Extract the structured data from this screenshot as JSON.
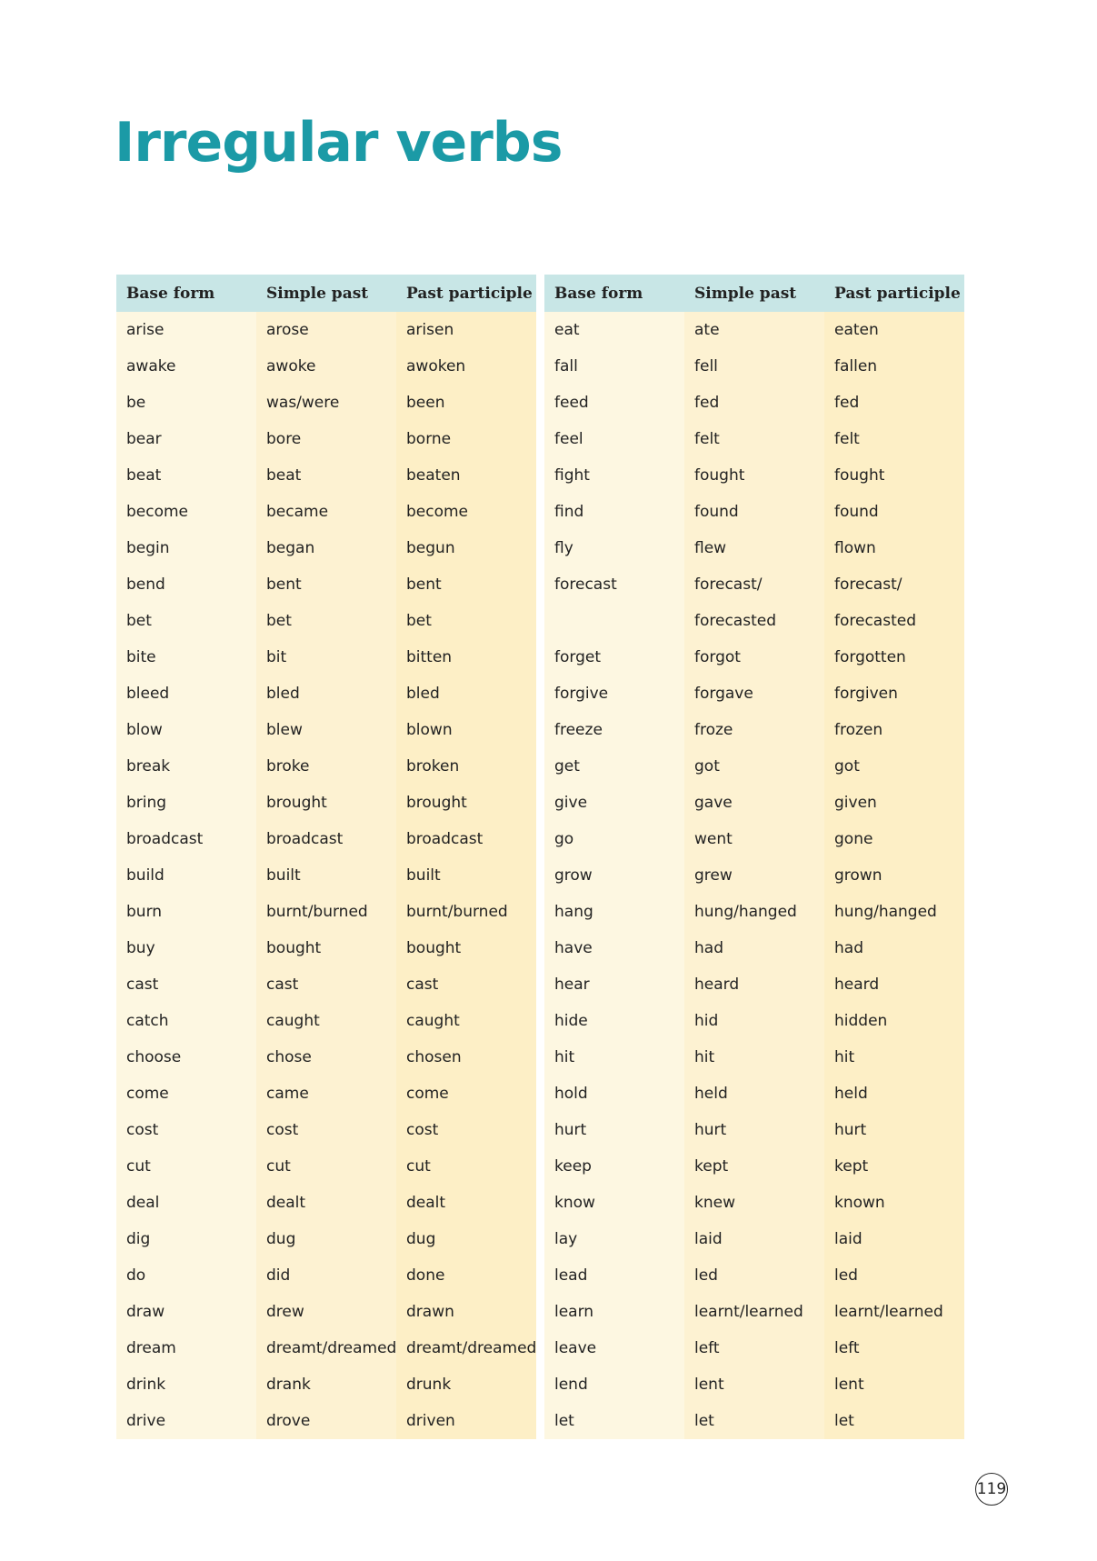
{
  "title": "Irregular verbs",
  "headers": [
    "Base form",
    "Simple past",
    "Past participle"
  ],
  "left_rows": [
    [
      "arise",
      "arose",
      "arisen"
    ],
    [
      "awake",
      "awoke",
      "awoken"
    ],
    [
      "be",
      "was/were",
      "been"
    ],
    [
      "bear",
      "bore",
      "borne"
    ],
    [
      "beat",
      "beat",
      "beaten"
    ],
    [
      "become",
      "became",
      "become"
    ],
    [
      "begin",
      "began",
      "begun"
    ],
    [
      "bend",
      "bent",
      "bent"
    ],
    [
      "bet",
      "bet",
      "bet"
    ],
    [
      "bite",
      "bit",
      "bitten"
    ],
    [
      "bleed",
      "bled",
      "bled"
    ],
    [
      "blow",
      "blew",
      "blown"
    ],
    [
      "break",
      "broke",
      "broken"
    ],
    [
      "bring",
      "brought",
      "brought"
    ],
    [
      "broadcast",
      "broadcast",
      "broadcast"
    ],
    [
      "build",
      "built",
      "built"
    ],
    [
      "burn",
      "burnt/burned",
      "burnt/burned"
    ],
    [
      "buy",
      "bought",
      "bought"
    ],
    [
      "cast",
      "cast",
      "cast"
    ],
    [
      "catch",
      "caught",
      "caught"
    ],
    [
      "choose",
      "chose",
      "chosen"
    ],
    [
      "come",
      "came",
      "come"
    ],
    [
      "cost",
      "cost",
      "cost"
    ],
    [
      "cut",
      "cut",
      "cut"
    ],
    [
      "deal",
      "dealt",
      "dealt"
    ],
    [
      "dig",
      "dug",
      "dug"
    ],
    [
      "do",
      "did",
      "done"
    ],
    [
      "draw",
      "drew",
      "drawn"
    ],
    [
      "dream",
      "dreamt/dreamed",
      "dreamt/dreamed"
    ],
    [
      "drink",
      "drank",
      "drunk"
    ],
    [
      "drive",
      "drove",
      "driven"
    ]
  ],
  "right_rows": [
    [
      "eat",
      "ate",
      "eaten"
    ],
    [
      "fall",
      "fell",
      "fallen"
    ],
    [
      "feed",
      "fed",
      "fed"
    ],
    [
      "feel",
      "felt",
      "felt"
    ],
    [
      "fight",
      "fought",
      "fought"
    ],
    [
      "find",
      "found",
      "found"
    ],
    [
      "fly",
      "flew",
      "flown"
    ],
    [
      "forecast",
      "forecast/",
      "forecast/"
    ],
    [
      "",
      "forecasted",
      "forecasted"
    ],
    [
      "forget",
      "forgot",
      "forgotten"
    ],
    [
      "forgive",
      "forgave",
      "forgiven"
    ],
    [
      "freeze",
      "froze",
      "frozen"
    ],
    [
      "get",
      "got",
      "got"
    ],
    [
      "give",
      "gave",
      "given"
    ],
    [
      "go",
      "went",
      "gone"
    ],
    [
      "grow",
      "grew",
      "grown"
    ],
    [
      "hang",
      "hung/hanged",
      "hung/hanged"
    ],
    [
      "have",
      "had",
      "had"
    ],
    [
      "hear",
      "heard",
      "heard"
    ],
    [
      "hide",
      "hid",
      "hidden"
    ],
    [
      "hit",
      "hit",
      "hit"
    ],
    [
      "hold",
      "held",
      "held"
    ],
    [
      "hurt",
      "hurt",
      "hurt"
    ],
    [
      "keep",
      "kept",
      "kept"
    ],
    [
      "know",
      "knew",
      "known"
    ],
    [
      "lay",
      "laid",
      "laid"
    ],
    [
      "lead",
      "led",
      "led"
    ],
    [
      "learn",
      "learnt/learned",
      "learnt/learned"
    ],
    [
      "leave",
      "left",
      "left"
    ],
    [
      "lend",
      "lent",
      "lent"
    ],
    [
      "let",
      "let",
      "let"
    ]
  ],
  "page_number": "119",
  "colors": {
    "title": "#1b9aa6",
    "header_bg": "#c8e6e6",
    "col1_bg": "#fdf7e1",
    "col2_bg": "#fdf2d2",
    "col3_bg": "#fdefc6"
  }
}
